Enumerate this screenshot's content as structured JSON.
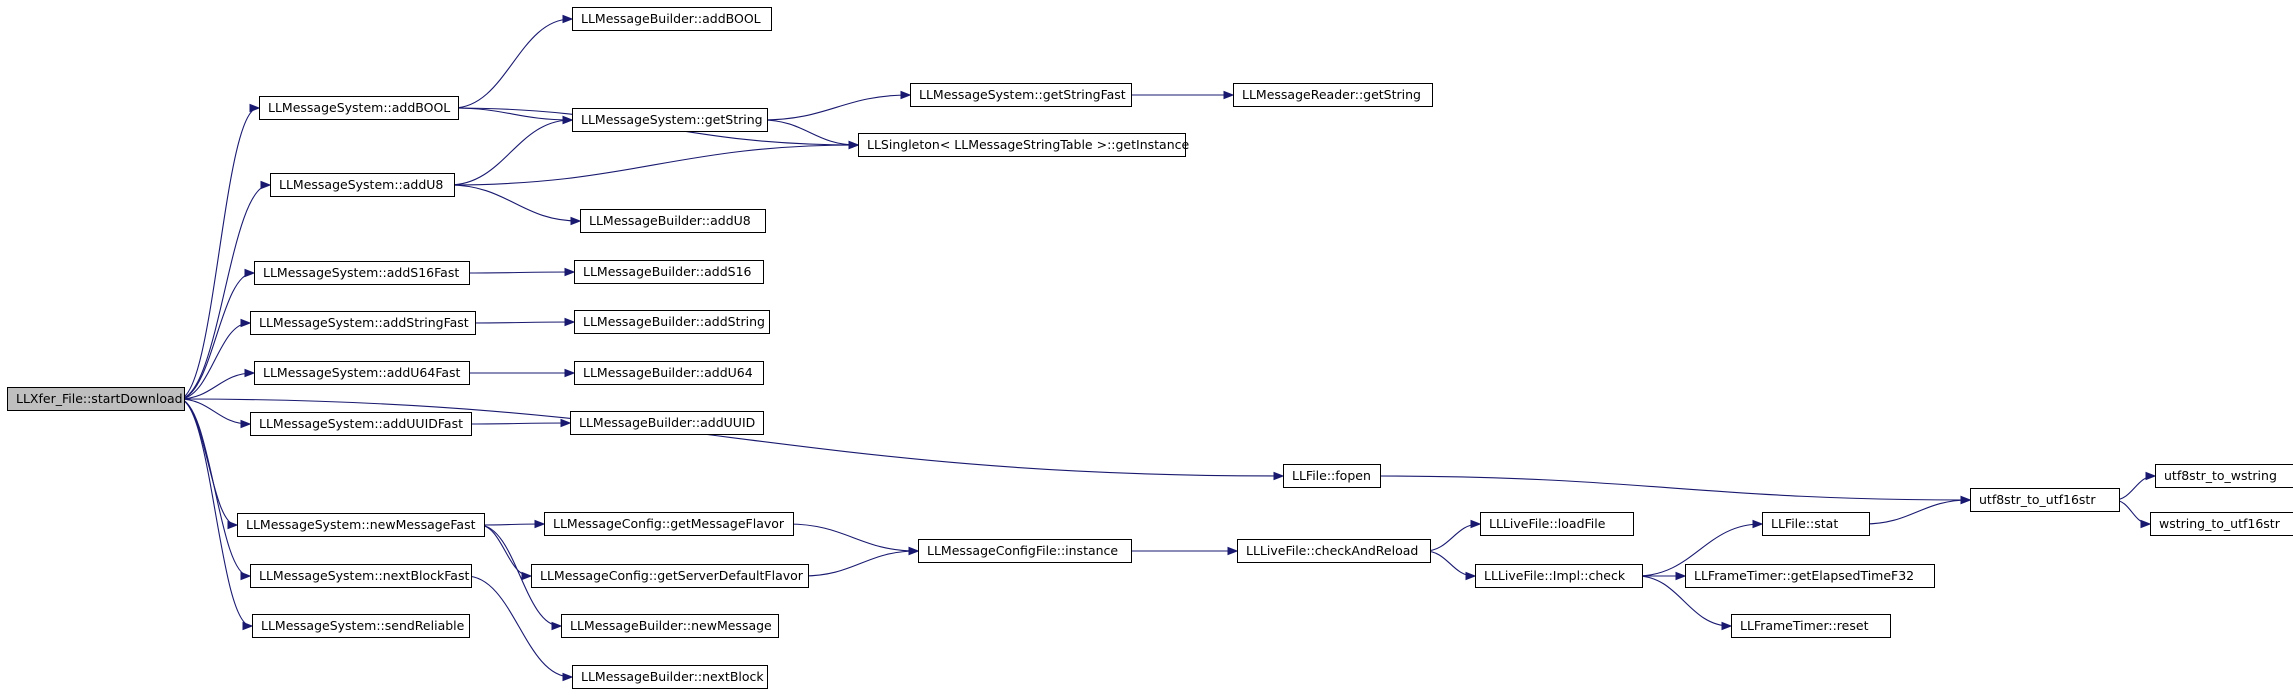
{
  "colors": {
    "edge": "#191970",
    "node_border": "#000000",
    "node_fill": "#ffffff",
    "root_fill": "#bfbfbf"
  },
  "nodes": [
    {
      "id": "root",
      "label": "LLXfer_File::startDownload",
      "root": true
    },
    {
      "id": "ms_addBOOL",
      "label": "LLMessageSystem::addBOOL"
    },
    {
      "id": "ms_addU8",
      "label": "LLMessageSystem::addU8"
    },
    {
      "id": "ms_addS16Fast",
      "label": "LLMessageSystem::addS16Fast"
    },
    {
      "id": "ms_addStringFast",
      "label": "LLMessageSystem::addStringFast"
    },
    {
      "id": "ms_addU64Fast",
      "label": "LLMessageSystem::addU64Fast"
    },
    {
      "id": "ms_addUUIDFast",
      "label": "LLMessageSystem::addUUIDFast"
    },
    {
      "id": "ms_newMessageFast",
      "label": "LLMessageSystem::newMessageFast"
    },
    {
      "id": "ms_nextBlockFast",
      "label": "LLMessageSystem::nextBlockFast"
    },
    {
      "id": "ms_sendReliable",
      "label": "LLMessageSystem::sendReliable"
    },
    {
      "id": "mb_addBOOL",
      "label": "LLMessageBuilder::addBOOL"
    },
    {
      "id": "ms_getString",
      "label": "LLMessageSystem::getString"
    },
    {
      "id": "singleton",
      "label": "LLSingleton< LLMessageStringTable >::getInstance"
    },
    {
      "id": "ms_getStringFast",
      "label": "LLMessageSystem::getStringFast"
    },
    {
      "id": "mr_getString",
      "label": "LLMessageReader::getString"
    },
    {
      "id": "mb_addU8",
      "label": "LLMessageBuilder::addU8"
    },
    {
      "id": "mb_addS16",
      "label": "LLMessageBuilder::addS16"
    },
    {
      "id": "mb_addString",
      "label": "LLMessageBuilder::addString"
    },
    {
      "id": "mb_addU64",
      "label": "LLMessageBuilder::addU64"
    },
    {
      "id": "mb_addUUID",
      "label": "LLMessageBuilder::addUUID"
    },
    {
      "id": "file_fopen",
      "label": "LLFile::fopen"
    },
    {
      "id": "utf8_to_utf16",
      "label": "utf8str_to_utf16str"
    },
    {
      "id": "utf8_to_wstring",
      "label": "utf8str_to_wstring"
    },
    {
      "id": "wstring_to_utf16",
      "label": "wstring_to_utf16str"
    },
    {
      "id": "mc_getMessageFlavor",
      "label": "LLMessageConfig::getMessageFlavor"
    },
    {
      "id": "mc_getServerDefaultFlavor",
      "label": "LLMessageConfig::getServerDefaultFlavor"
    },
    {
      "id": "mcf_instance",
      "label": "LLMessageConfigFile::instance"
    },
    {
      "id": "lf_checkAndReload",
      "label": "LLLiveFile::checkAndReload"
    },
    {
      "id": "lf_loadFile",
      "label": "LLLiveFile::loadFile"
    },
    {
      "id": "lf_impl_check",
      "label": "LLLiveFile::Impl::check"
    },
    {
      "id": "file_stat",
      "label": "LLFile::stat"
    },
    {
      "id": "ft_getElapsed",
      "label": "LLFrameTimer::getElapsedTimeF32"
    },
    {
      "id": "ft_reset",
      "label": "LLFrameTimer::reset"
    },
    {
      "id": "mb_newMessage",
      "label": "LLMessageBuilder::newMessage"
    },
    {
      "id": "mb_nextBlock",
      "label": "LLMessageBuilder::nextBlock"
    }
  ],
  "edges": [
    [
      "root",
      "ms_addBOOL"
    ],
    [
      "root",
      "ms_addU8"
    ],
    [
      "root",
      "ms_addS16Fast"
    ],
    [
      "root",
      "ms_addStringFast"
    ],
    [
      "root",
      "ms_addU64Fast"
    ],
    [
      "root",
      "ms_addUUIDFast"
    ],
    [
      "root",
      "file_fopen"
    ],
    [
      "root",
      "ms_newMessageFast"
    ],
    [
      "root",
      "ms_nextBlockFast"
    ],
    [
      "root",
      "ms_sendReliable"
    ],
    [
      "ms_addBOOL",
      "mb_addBOOL"
    ],
    [
      "ms_addBOOL",
      "ms_getString"
    ],
    [
      "ms_addBOOL",
      "singleton"
    ],
    [
      "ms_getString",
      "ms_getStringFast"
    ],
    [
      "ms_getString",
      "singleton"
    ],
    [
      "ms_getStringFast",
      "mr_getString"
    ],
    [
      "ms_addU8",
      "ms_getString"
    ],
    [
      "ms_addU8",
      "singleton"
    ],
    [
      "ms_addU8",
      "mb_addU8"
    ],
    [
      "ms_addS16Fast",
      "mb_addS16"
    ],
    [
      "ms_addStringFast",
      "mb_addString"
    ],
    [
      "ms_addU64Fast",
      "mb_addU64"
    ],
    [
      "ms_addUUIDFast",
      "mb_addUUID"
    ],
    [
      "file_fopen",
      "utf8_to_utf16"
    ],
    [
      "utf8_to_utf16",
      "utf8_to_wstring"
    ],
    [
      "utf8_to_utf16",
      "wstring_to_utf16"
    ],
    [
      "ms_newMessageFast",
      "mc_getMessageFlavor"
    ],
    [
      "ms_newMessageFast",
      "mc_getServerDefaultFlavor"
    ],
    [
      "ms_newMessageFast",
      "mb_newMessage"
    ],
    [
      "mc_getMessageFlavor",
      "mcf_instance"
    ],
    [
      "mc_getServerDefaultFlavor",
      "mcf_instance"
    ],
    [
      "mcf_instance",
      "lf_checkAndReload"
    ],
    [
      "lf_checkAndReload",
      "lf_loadFile"
    ],
    [
      "lf_checkAndReload",
      "lf_impl_check"
    ],
    [
      "lf_impl_check",
      "file_stat"
    ],
    [
      "lf_impl_check",
      "ft_getElapsed"
    ],
    [
      "lf_impl_check",
      "ft_reset"
    ],
    [
      "file_stat",
      "utf8_to_utf16"
    ],
    [
      "ms_nextBlockFast",
      "mb_nextBlock"
    ]
  ]
}
